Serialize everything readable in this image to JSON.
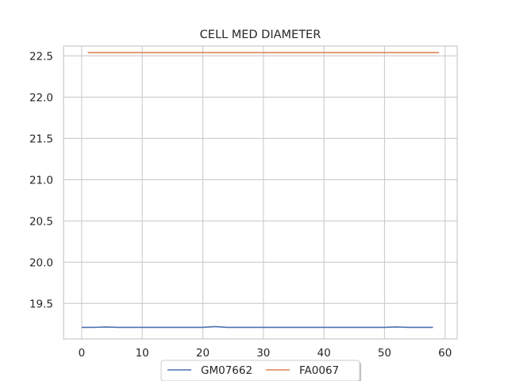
{
  "chart_data": {
    "type": "line",
    "title": "CELL MED DIAMETER",
    "xlabel": "",
    "ylabel": "",
    "xlim": [
      -3,
      62
    ],
    "ylim": [
      19.07,
      22.62
    ],
    "xticks": [
      0,
      10,
      20,
      30,
      40,
      50,
      60
    ],
    "xtick_labels": [
      "0",
      "10",
      "20",
      "30",
      "40",
      "50",
      "60"
    ],
    "yticks": [
      19.5,
      20.0,
      20.5,
      21.0,
      21.5,
      22.0,
      22.5
    ],
    "ytick_labels": [
      "19.5",
      "20.0",
      "20.5",
      "21.0",
      "21.5",
      "22.0",
      "22.5"
    ],
    "grid": true,
    "legend_position": "bottom-center",
    "series": [
      {
        "name": "GM07662",
        "color": "#4c72b0",
        "x": [
          0,
          2,
          4,
          6,
          8,
          10,
          12,
          14,
          16,
          18,
          20,
          22,
          24,
          26,
          28,
          30,
          32,
          34,
          36,
          38,
          40,
          42,
          44,
          46,
          48,
          50,
          52,
          54,
          56,
          58
        ],
        "y": [
          19.21,
          19.21,
          19.215,
          19.21,
          19.21,
          19.21,
          19.21,
          19.21,
          19.21,
          19.21,
          19.21,
          19.22,
          19.21,
          19.21,
          19.21,
          19.21,
          19.21,
          19.21,
          19.21,
          19.21,
          19.21,
          19.21,
          19.21,
          19.21,
          19.21,
          19.21,
          19.215,
          19.21,
          19.21,
          19.21
        ]
      },
      {
        "name": "FA0067",
        "color": "#dd8452",
        "x": [
          1,
          5,
          10,
          15,
          20,
          25,
          30,
          35,
          40,
          45,
          50,
          55,
          59
        ],
        "y": [
          22.54,
          22.54,
          22.54,
          22.54,
          22.54,
          22.54,
          22.54,
          22.54,
          22.54,
          22.54,
          22.54,
          22.54,
          22.54
        ]
      }
    ]
  }
}
